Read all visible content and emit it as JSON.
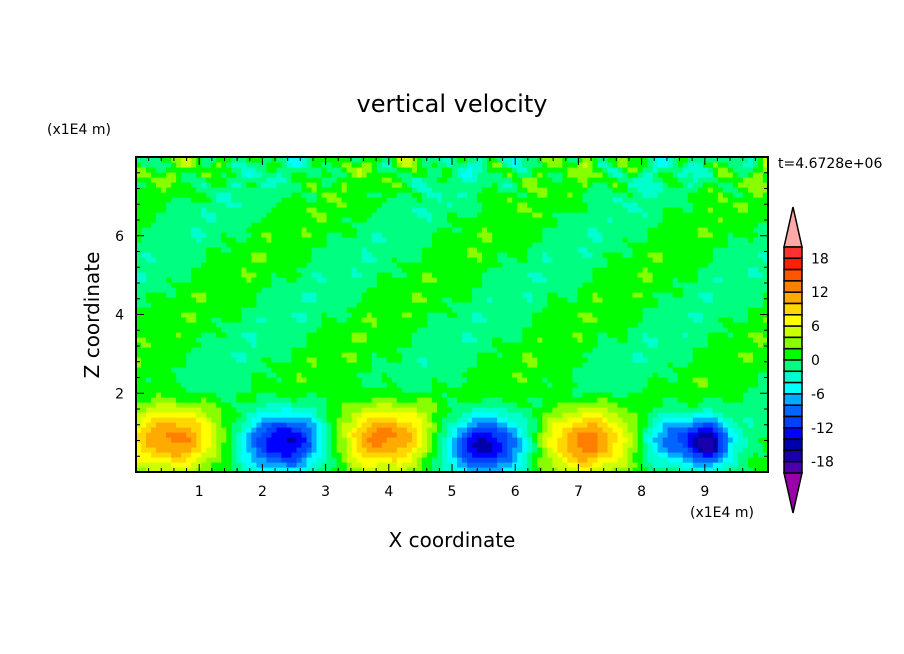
{
  "chart_data": {
    "type": "heatmap",
    "title": "vertical velocity",
    "xlabel": "X coordinate",
    "ylabel": "Z coordinate",
    "x_unit_label": "(x1E4 m)",
    "y_unit_label": "(x1E4 m)",
    "time_label": "t=4.6728e+06",
    "xlim": [
      0,
      10
    ],
    "ylim": [
      0,
      8
    ],
    "x_ticks": [
      1,
      2,
      3,
      4,
      5,
      6,
      7,
      8,
      9
    ],
    "y_ticks": [
      2,
      4,
      6
    ],
    "grid": false,
    "colorbar": {
      "levels_min": -20,
      "levels_max": 20,
      "level_step": 2,
      "tick_labels": [
        "18",
        "12",
        "6",
        "0",
        "-6",
        "-12",
        "-18"
      ],
      "tick_values": [
        18,
        12,
        6,
        0,
        -6,
        -12,
        -18
      ],
      "extend": "both",
      "over_color": "#ffa8a8",
      "under_color": "#9900aa",
      "colors_high_to_low": [
        "#ff3030",
        "#ff2000",
        "#ff5500",
        "#ff7f00",
        "#ffaa00",
        "#ffd700",
        "#ffff00",
        "#ccff00",
        "#88ff00",
        "#00ff00",
        "#00ff80",
        "#00ffcc",
        "#00ffff",
        "#00aaff",
        "#0066ff",
        "#0040ff",
        "#0000ff",
        "#0000aa",
        "#1a00aa",
        "#4b00aa"
      ]
    },
    "features": [
      {
        "kind": "updraft",
        "x": 0.55,
        "z": 0.9,
        "amplitude": 13,
        "sx": 0.55,
        "sz": 0.6
      },
      {
        "kind": "downdraft",
        "x": 2.35,
        "z": 0.8,
        "amplitude": -15,
        "sx": 0.5,
        "sz": 0.55
      },
      {
        "kind": "updraft",
        "x": 3.9,
        "z": 0.9,
        "amplitude": 13,
        "sx": 0.6,
        "sz": 0.6
      },
      {
        "kind": "downdraft",
        "x": 5.5,
        "z": 0.7,
        "amplitude": -15,
        "sx": 0.5,
        "sz": 0.55
      },
      {
        "kind": "updraft",
        "x": 7.1,
        "z": 0.8,
        "amplitude": 13,
        "sx": 0.55,
        "sz": 0.6
      },
      {
        "kind": "downdraft",
        "x": 8.6,
        "z": 0.85,
        "amplitude": -11,
        "sx": 0.45,
        "sz": 0.45
      },
      {
        "kind": "downdraft",
        "x": 9.1,
        "z": 0.7,
        "amplitude": -11,
        "sx": 0.2,
        "sz": 0.4
      }
    ]
  }
}
